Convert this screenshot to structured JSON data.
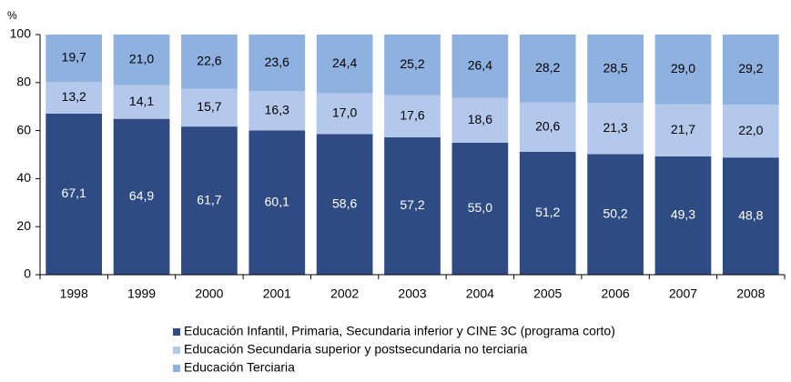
{
  "chart_data": {
    "type": "bar",
    "stacked": true,
    "y_label": "%",
    "categories": [
      "1998",
      "1999",
      "2000",
      "2001",
      "2002",
      "2003",
      "2004",
      "2005",
      "2006",
      "2007",
      "2008"
    ],
    "series": [
      {
        "name": "Educación Infantil, Primaria, Secundaria inferior y CINE 3C (programa corto)",
        "color": "#2e4b84",
        "values": [
          67.1,
          64.9,
          61.7,
          60.1,
          58.6,
          57.2,
          55.0,
          51.2,
          50.2,
          49.3,
          48.8
        ],
        "value_labels": [
          "67,1",
          "64,9",
          "61,7",
          "60,1",
          "58,6",
          "57,2",
          "55,0",
          "51,2",
          "50,2",
          "49,3",
          "48,8"
        ]
      },
      {
        "name": "Educación Secundaria superior y postsecundaria no terciaria",
        "color": "#b4c8ec",
        "values": [
          13.2,
          14.1,
          15.7,
          16.3,
          17.0,
          17.6,
          18.6,
          20.6,
          21.3,
          21.7,
          22.0
        ],
        "value_labels": [
          "13,2",
          "14,1",
          "15,7",
          "16,3",
          "17,0",
          "17,6",
          "18,6",
          "20,6",
          "21,3",
          "21,7",
          "22,0"
        ]
      },
      {
        "name": "Educación Terciaria",
        "color": "#8fb1e0",
        "values": [
          19.7,
          21.0,
          22.6,
          23.6,
          24.4,
          25.2,
          26.4,
          28.2,
          28.5,
          29.0,
          29.2
        ],
        "value_labels": [
          "19,7",
          "21,0",
          "22,6",
          "23,6",
          "24,4",
          "25,2",
          "26,4",
          "28,2",
          "28,5",
          "29,0",
          "29,2"
        ]
      }
    ],
    "ylim": [
      0,
      100
    ],
    "yticks": [
      0,
      20,
      40,
      60,
      80,
      100
    ],
    "grid": false
  }
}
